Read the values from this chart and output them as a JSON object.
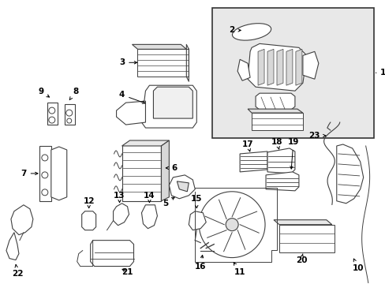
{
  "bg_color": "#ffffff",
  "line_color": "#404040",
  "inset_bg": "#e8e8e8",
  "fig_width": 4.89,
  "fig_height": 3.6,
  "dpi": 100
}
